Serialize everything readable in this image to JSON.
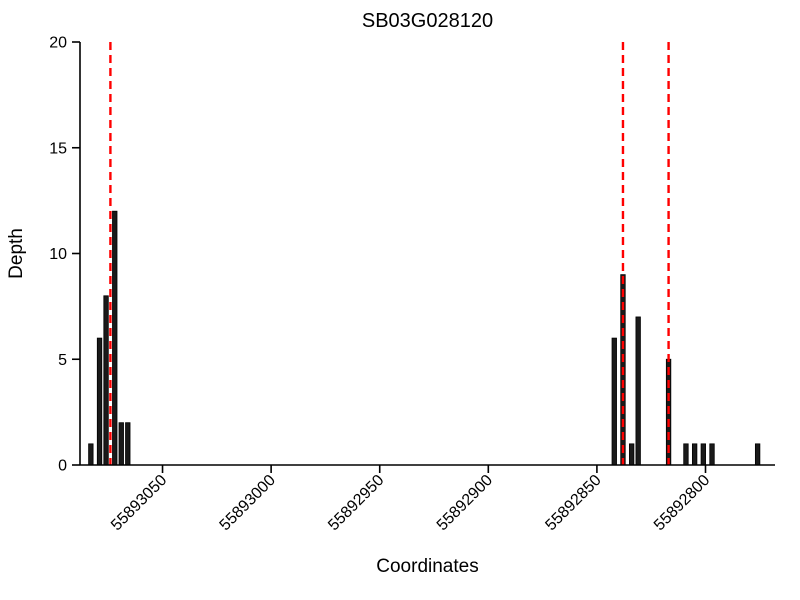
{
  "chart_data": {
    "type": "bar",
    "title": "SB03G028120",
    "xlabel": "Coordinates",
    "ylabel": "Depth",
    "ylim": [
      0,
      20
    ],
    "yticks": [
      0,
      5,
      10,
      15,
      20
    ],
    "x_axis_reversed": true,
    "xlim": [
      55893088,
      55892768
    ],
    "xticks": [
      55893050,
      55893000,
      55892950,
      55892900,
      55892850,
      55892800
    ],
    "bars": [
      {
        "x": 55893083,
        "depth": 1
      },
      {
        "x": 55893079,
        "depth": 6
      },
      {
        "x": 55893076,
        "depth": 8
      },
      {
        "x": 55893072,
        "depth": 12
      },
      {
        "x": 55893069,
        "depth": 2
      },
      {
        "x": 55893066,
        "depth": 2
      },
      {
        "x": 55892842,
        "depth": 6
      },
      {
        "x": 55892838,
        "depth": 9
      },
      {
        "x": 55892834,
        "depth": 1
      },
      {
        "x": 55892831,
        "depth": 7
      },
      {
        "x": 55892817,
        "depth": 5
      },
      {
        "x": 55892809,
        "depth": 1
      },
      {
        "x": 55892805,
        "depth": 1
      },
      {
        "x": 55892801,
        "depth": 1
      },
      {
        "x": 55892797,
        "depth": 1
      },
      {
        "x": 55892776,
        "depth": 1
      }
    ],
    "red_dashed_lines": [
      55893074,
      55892838,
      55892817
    ],
    "bar_color": "#1a1a1a",
    "bar_edge_color": "#000000",
    "line_color": "#ff0000",
    "axis_color": "#000000",
    "legend": "off",
    "grid": "off"
  }
}
